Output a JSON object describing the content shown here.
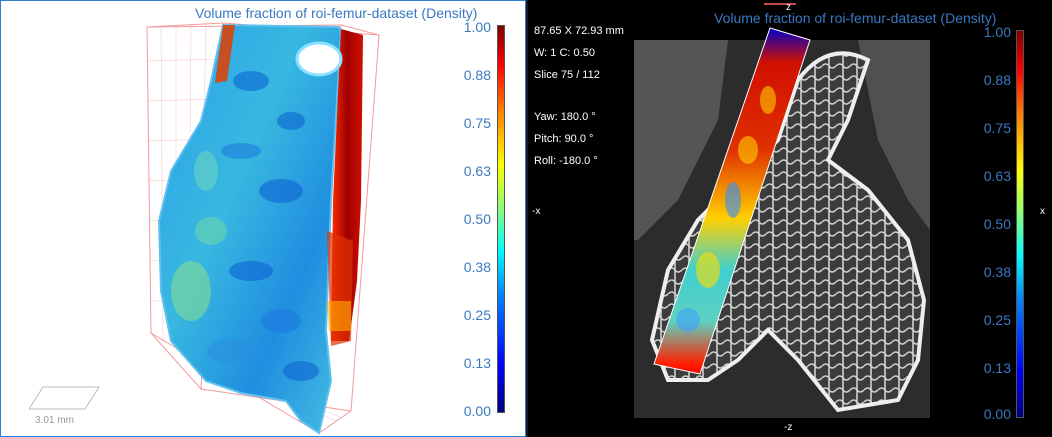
{
  "left": {
    "title": "Volume fraction of roi-femur-dataset (Density)",
    "scale_label": "3.01 mm",
    "ticks": [
      "1.00",
      "0.88",
      "0.75",
      "0.63",
      "0.50",
      "0.38",
      "0.25",
      "0.13",
      "0.00"
    ]
  },
  "right": {
    "title": "Volume fraction of roi-femur-dataset (Density)",
    "dims": "87.65 X 72.93 mm",
    "window": "W: 1 C: 0.50",
    "slice": "Slice 75 / 112",
    "yaw": "Yaw: 180.0 °",
    "pitch": "Pitch: 90.0 °",
    "roll": "Roll: -180.0 °",
    "axis_top": "z",
    "axis_bottom": "-z",
    "axis_left": "-x",
    "axis_right": "x",
    "ticks": [
      "1.00",
      "0.88",
      "0.75",
      "0.63",
      "0.50",
      "0.38",
      "0.25",
      "0.13",
      "0.00"
    ]
  },
  "colors": {
    "label_blue": "#3a78c2",
    "panel_border": "#2f7fd0",
    "bbox_red": "#f08080"
  }
}
